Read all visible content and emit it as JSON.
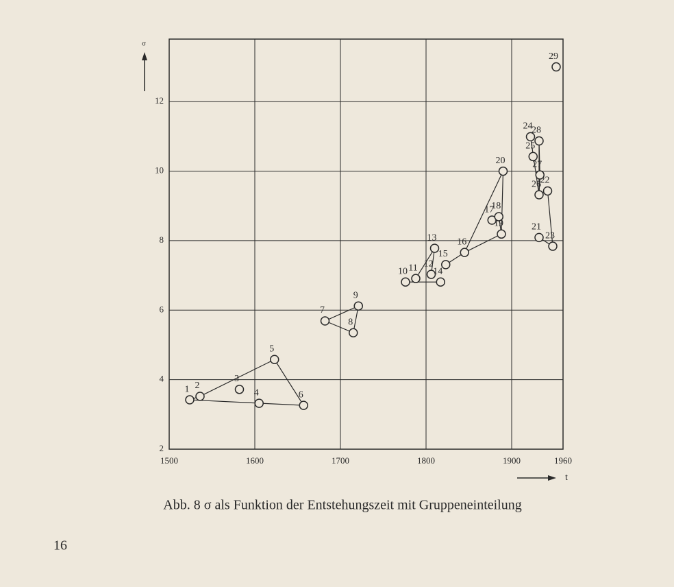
{
  "chart_data": {
    "type": "scatter",
    "caption": "Abb. 8   σ als Funktion der Entstehungszeit mit Gruppeneinteilung",
    "page_number": "16",
    "xlabel": "t",
    "ylabel": "σ",
    "xlim": [
      1500,
      1960
    ],
    "xticks": [
      1500,
      1600,
      1700,
      1800,
      1900,
      1960
    ],
    "ylim": [
      2,
      13.8
    ],
    "yticks": [
      2,
      4,
      6,
      8,
      10,
      12
    ],
    "grid": true,
    "color": "#2a2a2a",
    "point_labels": [
      "1",
      "2",
      "3",
      "4",
      "5",
      "6",
      "7",
      "8",
      "9",
      "10",
      "11",
      "12",
      "13",
      "14",
      "15",
      "16",
      "17",
      "18",
      "19",
      "20",
      "21",
      "22",
      "23",
      "24",
      "25",
      "26",
      "27",
      "28",
      "29"
    ],
    "x": [
      1524,
      1536,
      1582,
      1605,
      1623,
      1657,
      1682,
      1715,
      1721,
      1776,
      1788,
      1806,
      1810,
      1817,
      1823,
      1845,
      1877,
      1885,
      1888,
      1890,
      1932,
      1942,
      1948,
      1922,
      1925,
      1932,
      1933,
      1932,
      1952
    ],
    "values": [
      3.42,
      3.52,
      3.72,
      3.32,
      4.58,
      3.26,
      5.69,
      5.35,
      6.12,
      6.81,
      6.91,
      7.03,
      7.78,
      6.81,
      7.31,
      7.66,
      8.59,
      8.69,
      8.19,
      10.0,
      8.09,
      9.43,
      7.84,
      10.99,
      10.42,
      9.32,
      9.89,
      10.87,
      13.0
    ],
    "lines": [
      [
        0,
        1,
        4,
        5,
        0
      ],
      [
        6,
        8,
        7,
        6
      ],
      [
        9,
        13
      ],
      [
        10,
        12,
        11
      ],
      [
        14,
        15,
        18,
        19,
        15
      ],
      [
        17,
        18
      ],
      [
        23,
        25,
        27,
        26,
        25
      ],
      [
        25,
        21,
        22,
        20
      ]
    ]
  }
}
